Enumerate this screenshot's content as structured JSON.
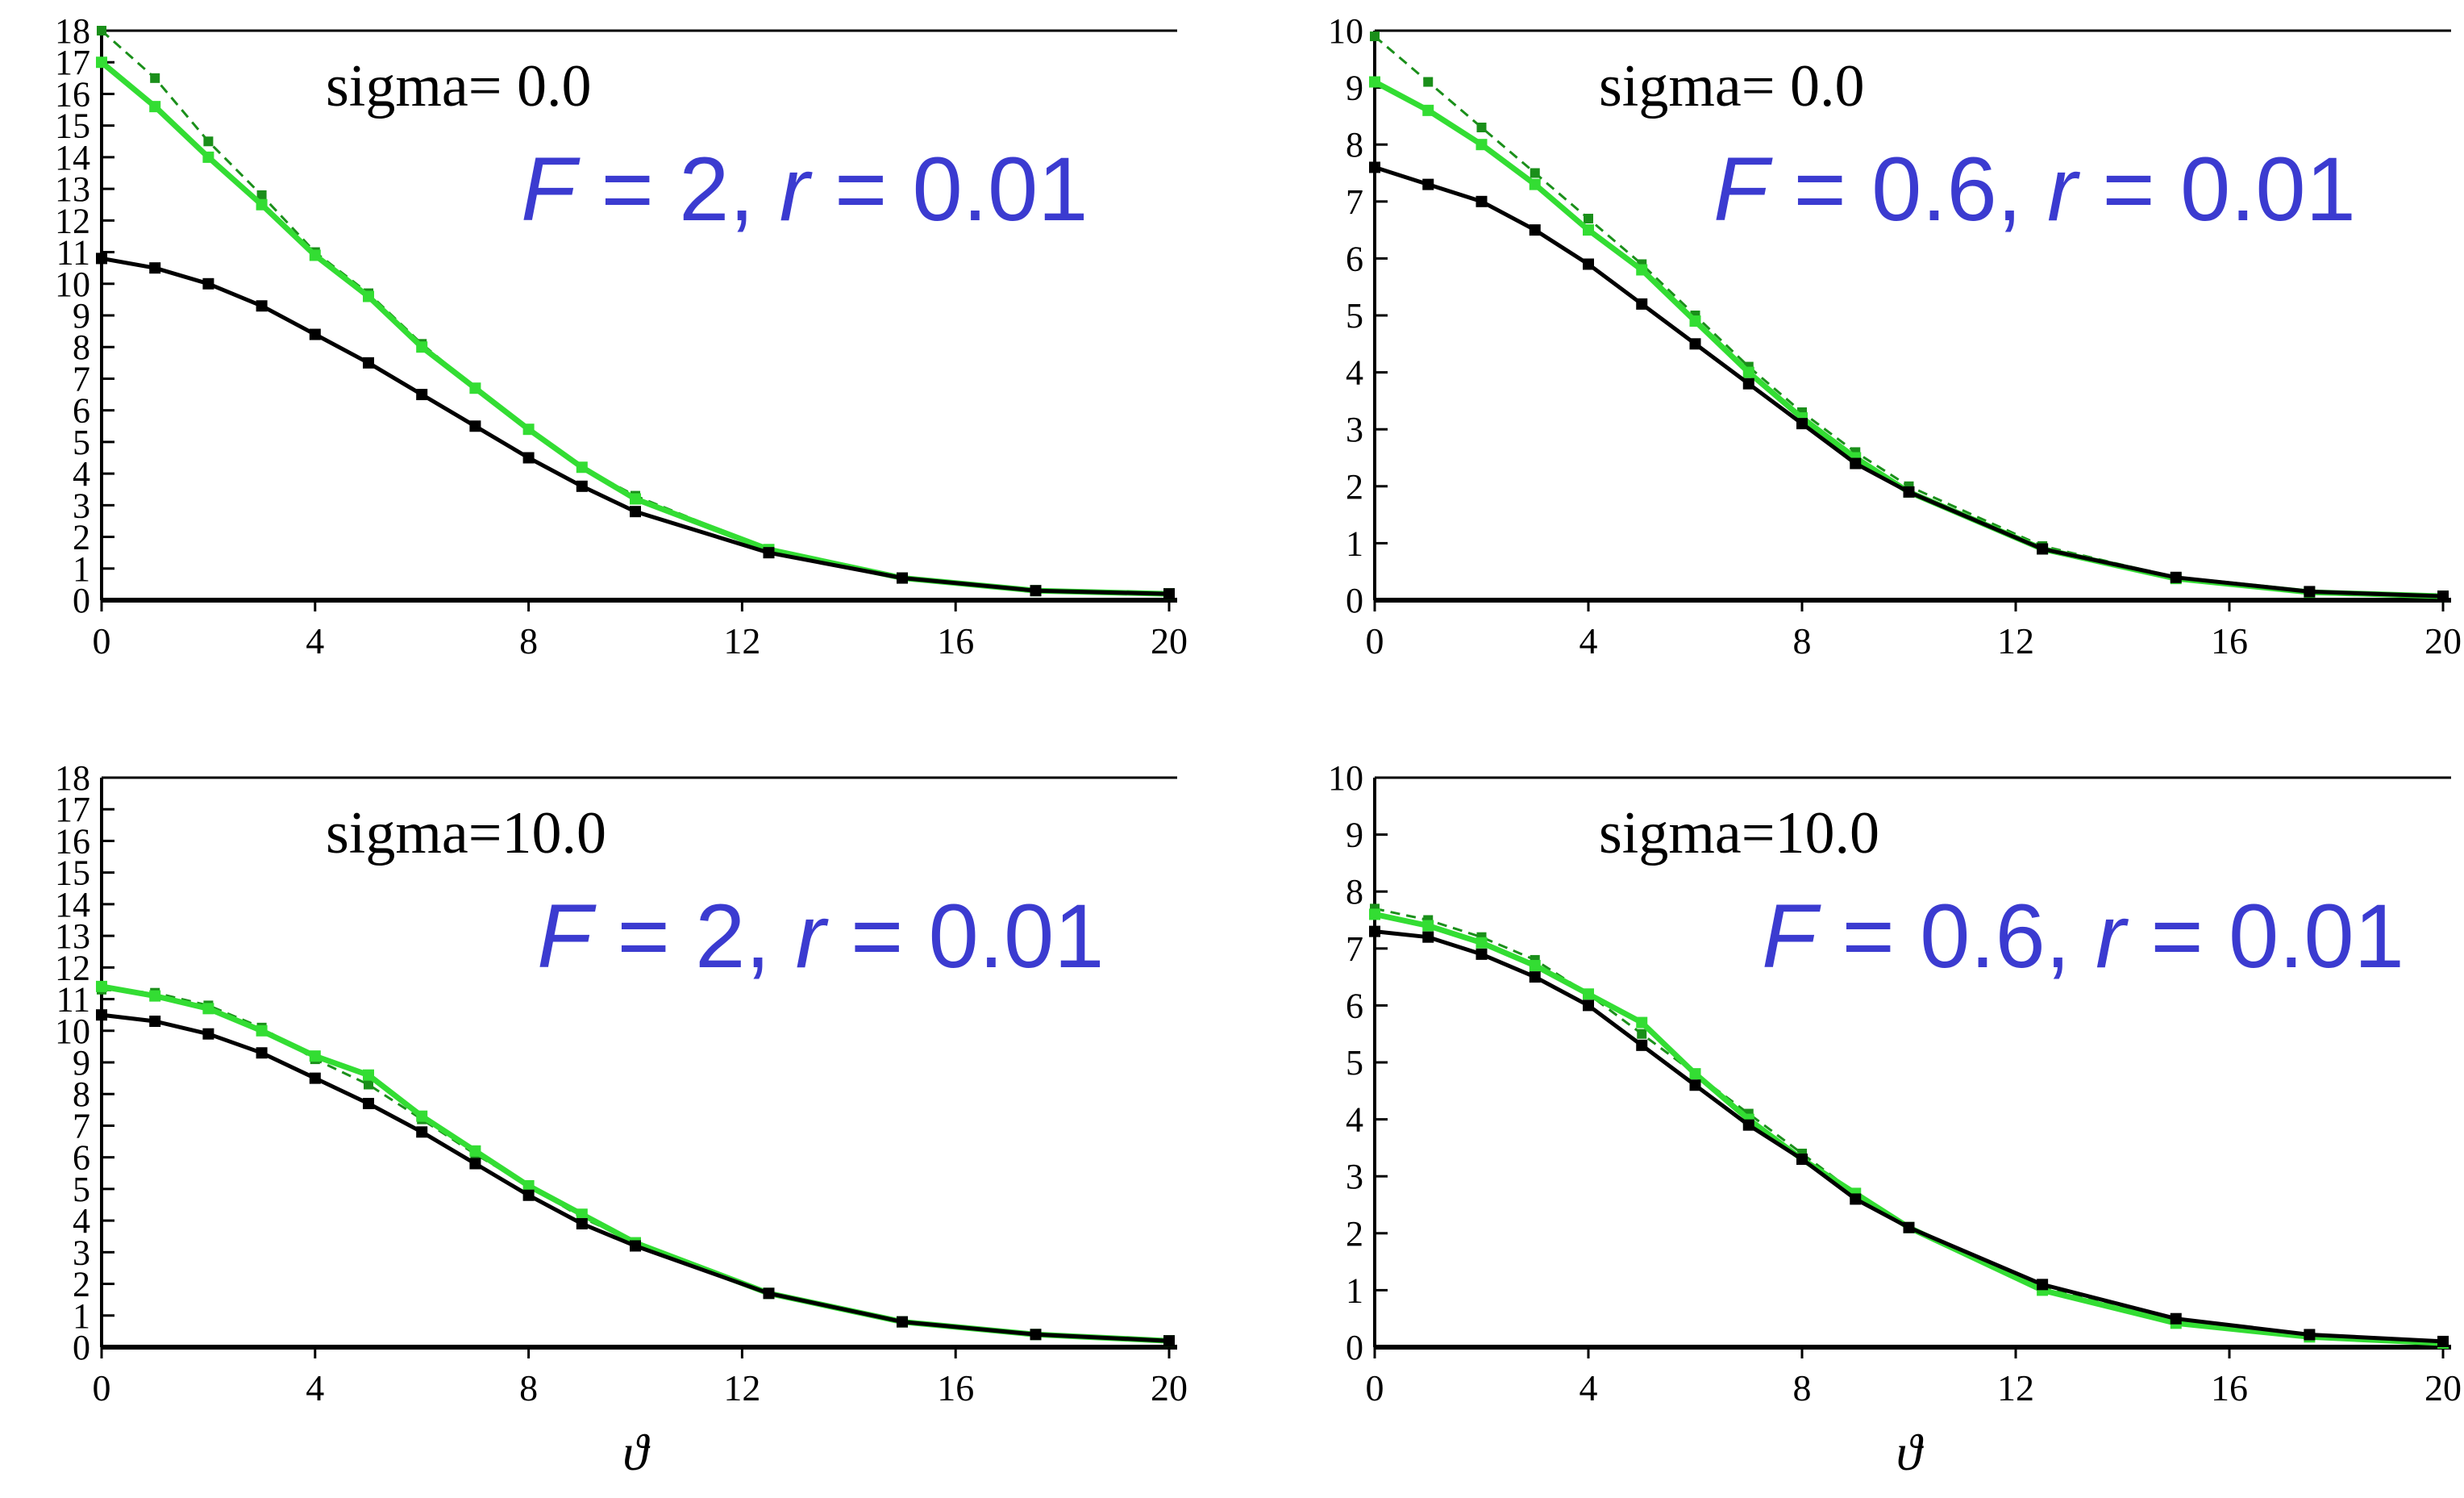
{
  "chart_data": [
    {
      "type": "line",
      "sigma_label": "sigma= 0.0",
      "param_label": {
        "var1": "F",
        "mid": " = 2, ",
        "var2": "r",
        "end": " = 0.01"
      },
      "xlabel": "",
      "xlim": [
        0,
        20
      ],
      "ylim": [
        0,
        18
      ],
      "x_ticks": [
        0,
        4,
        8,
        12,
        16,
        20
      ],
      "y_ticks": [
        0,
        1,
        2,
        3,
        4,
        5,
        6,
        7,
        8,
        9,
        10,
        11,
        12,
        13,
        14,
        15,
        16,
        17,
        18
      ],
      "series": [
        {
          "name": "green-dashed",
          "color": "#1a8f1a",
          "style": "dashed",
          "x": [
            0,
            1,
            2,
            3,
            4,
            5,
            6,
            7,
            8,
            9,
            10,
            12.5,
            15,
            17.5,
            20
          ],
          "y": [
            18.0,
            16.5,
            14.5,
            12.8,
            11.0,
            9.7,
            8.1,
            6.7,
            5.4,
            4.2,
            3.3,
            1.6,
            0.7,
            0.3,
            0.2
          ]
        },
        {
          "name": "green-solid",
          "color": "#33dd33",
          "style": "solid",
          "x": [
            0,
            1,
            2,
            3,
            4,
            5,
            6,
            7,
            8,
            9,
            10,
            12.5,
            15,
            17.5,
            20
          ],
          "y": [
            17.0,
            15.6,
            14.0,
            12.5,
            10.9,
            9.6,
            8.0,
            6.7,
            5.4,
            4.2,
            3.2,
            1.6,
            0.7,
            0.3,
            0.2
          ]
        },
        {
          "name": "black",
          "color": "#000000",
          "style": "solid",
          "x": [
            0,
            1,
            2,
            3,
            4,
            5,
            6,
            7,
            8,
            9,
            10,
            12.5,
            15,
            17.5,
            20
          ],
          "y": [
            10.8,
            10.5,
            10.0,
            9.3,
            8.4,
            7.5,
            6.5,
            5.5,
            4.5,
            3.6,
            2.8,
            1.5,
            0.7,
            0.3,
            0.2
          ]
        }
      ]
    },
    {
      "type": "line",
      "sigma_label": "sigma= 0.0",
      "param_label": {
        "var1": "F",
        "mid": " = 0.6, ",
        "var2": "r",
        "end": " = 0.01"
      },
      "xlabel": "",
      "xlim": [
        0,
        20
      ],
      "ylim": [
        0,
        10
      ],
      "x_ticks": [
        0,
        4,
        8,
        12,
        16,
        20
      ],
      "y_ticks": [
        0,
        1,
        2,
        3,
        4,
        5,
        6,
        7,
        8,
        9,
        10
      ],
      "series": [
        {
          "name": "green-dashed",
          "color": "#1a8f1a",
          "style": "dashed",
          "x": [
            0,
            1,
            2,
            3,
            4,
            5,
            6,
            7,
            8,
            9,
            10,
            12.5,
            15,
            17.5,
            20
          ],
          "y": [
            9.9,
            9.1,
            8.3,
            7.5,
            6.7,
            5.9,
            5.0,
            4.1,
            3.3,
            2.6,
            2.0,
            0.95,
            0.4,
            0.15,
            0.07
          ]
        },
        {
          "name": "green-solid",
          "color": "#33dd33",
          "style": "solid",
          "x": [
            0,
            1,
            2,
            3,
            4,
            5,
            6,
            7,
            8,
            9,
            10,
            12.5,
            15,
            17.5,
            20
          ],
          "y": [
            9.1,
            8.6,
            8.0,
            7.3,
            6.5,
            5.8,
            4.9,
            4.0,
            3.2,
            2.5,
            1.9,
            0.9,
            0.38,
            0.14,
            0.07
          ]
        },
        {
          "name": "black",
          "color": "#000000",
          "style": "solid",
          "x": [
            0,
            1,
            2,
            3,
            4,
            5,
            6,
            7,
            8,
            9,
            10,
            12.5,
            15,
            17.5,
            20
          ],
          "y": [
            7.6,
            7.3,
            7.0,
            6.5,
            5.9,
            5.2,
            4.5,
            3.8,
            3.1,
            2.4,
            1.9,
            0.9,
            0.4,
            0.15,
            0.07
          ]
        }
      ]
    },
    {
      "type": "line",
      "sigma_label": "sigma=10.0",
      "param_label": {
        "var1": "F",
        "mid": " = 2, ",
        "var2": "r",
        "end": " = 0.01"
      },
      "xlabel": "ϑ",
      "xlim": [
        0,
        20
      ],
      "ylim": [
        0,
        18
      ],
      "x_ticks": [
        0,
        4,
        8,
        12,
        16,
        20
      ],
      "y_ticks": [
        0,
        1,
        2,
        3,
        4,
        5,
        6,
        7,
        8,
        9,
        10,
        11,
        12,
        13,
        14,
        15,
        16,
        17,
        18
      ],
      "series": [
        {
          "name": "green-dashed",
          "color": "#1a8f1a",
          "style": "dashed",
          "x": [
            0,
            1,
            2,
            3,
            4,
            5,
            6,
            7,
            8,
            9,
            10,
            12.5,
            15,
            17.5,
            20
          ],
          "y": [
            11.3,
            11.2,
            10.8,
            10.1,
            9.1,
            8.3,
            7.2,
            6.1,
            5.1,
            4.1,
            3.3,
            1.7,
            0.8,
            0.4,
            0.2
          ]
        },
        {
          "name": "green-solid",
          "color": "#33dd33",
          "style": "solid",
          "x": [
            0,
            1,
            2,
            3,
            4,
            5,
            6,
            7,
            8,
            9,
            10,
            12.5,
            15,
            17.5,
            20
          ],
          "y": [
            11.4,
            11.1,
            10.7,
            10.0,
            9.2,
            8.6,
            7.3,
            6.2,
            5.1,
            4.2,
            3.3,
            1.7,
            0.8,
            0.4,
            0.2
          ]
        },
        {
          "name": "black",
          "color": "#000000",
          "style": "solid",
          "x": [
            0,
            1,
            2,
            3,
            4,
            5,
            6,
            7,
            8,
            9,
            10,
            12.5,
            15,
            17.5,
            20
          ],
          "y": [
            10.5,
            10.3,
            9.9,
            9.3,
            8.5,
            7.7,
            6.8,
            5.8,
            4.8,
            3.9,
            3.2,
            1.7,
            0.8,
            0.4,
            0.2
          ]
        }
      ]
    },
    {
      "type": "line",
      "sigma_label": "sigma=10.0",
      "param_label": {
        "var1": "F",
        "mid": " = 0.6, ",
        "var2": "r",
        "end": " = 0.01"
      },
      "xlabel": "ϑ",
      "xlim": [
        0,
        20
      ],
      "ylim": [
        0,
        10
      ],
      "x_ticks": [
        0,
        4,
        8,
        12,
        16,
        20
      ],
      "y_ticks": [
        0,
        1,
        2,
        3,
        4,
        5,
        6,
        7,
        8,
        9,
        10
      ],
      "series": [
        {
          "name": "green-dashed",
          "color": "#1a8f1a",
          "style": "dashed",
          "x": [
            0,
            1,
            2,
            3,
            4,
            5,
            6,
            7,
            8,
            9,
            10,
            12.5,
            15,
            17.5,
            20
          ],
          "y": [
            7.7,
            7.5,
            7.2,
            6.8,
            6.2,
            5.5,
            4.8,
            4.1,
            3.4,
            2.7,
            2.1,
            1.05,
            0.45,
            0.2,
            0.08
          ]
        },
        {
          "name": "green-solid",
          "color": "#33dd33",
          "style": "solid",
          "x": [
            0,
            1,
            2,
            3,
            4,
            5,
            6,
            7,
            8,
            9,
            10,
            12.5,
            15,
            17.5,
            20
          ],
          "y": [
            7.6,
            7.4,
            7.1,
            6.7,
            6.2,
            5.7,
            4.8,
            4.0,
            3.3,
            2.7,
            2.1,
            1.0,
            0.42,
            0.18,
            0.07
          ]
        },
        {
          "name": "black",
          "color": "#000000",
          "style": "solid",
          "x": [
            0,
            1,
            2,
            3,
            4,
            5,
            6,
            7,
            8,
            9,
            10,
            12.5,
            15,
            17.5,
            20
          ],
          "y": [
            7.3,
            7.2,
            6.9,
            6.5,
            6.0,
            5.3,
            4.6,
            3.9,
            3.3,
            2.6,
            2.1,
            1.1,
            0.5,
            0.22,
            0.1
          ]
        }
      ]
    }
  ]
}
